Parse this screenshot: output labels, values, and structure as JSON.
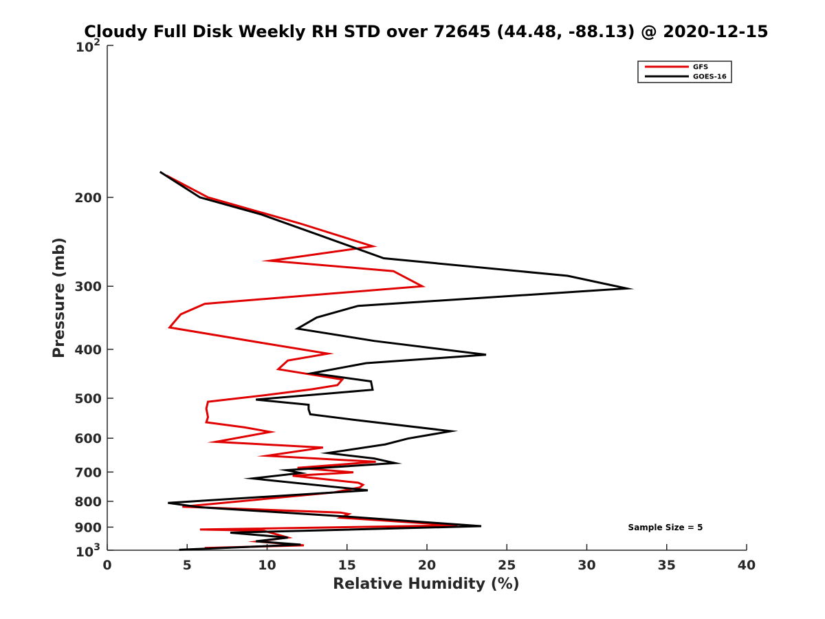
{
  "chart_data": {
    "type": "line",
    "title": "Cloudy Full Disk Weekly RH STD over 72645 (44.48, -88.13) @ 2020-12-15",
    "xlabel": "Relative Humidity (%)",
    "ylabel": "Pressure (mb)",
    "xlim": [
      0,
      40
    ],
    "ylim": [
      100,
      1000
    ],
    "yscale": "log",
    "y_reversed": true,
    "grid": false,
    "legend_position": "top-right",
    "x_ticks": [
      "0",
      "5",
      "10",
      "15",
      "20",
      "25",
      "30",
      "35",
      "40"
    ],
    "x_tick_values": [
      0,
      5,
      10,
      15,
      20,
      25,
      30,
      35,
      40
    ],
    "y_ticks": [
      {
        "value": 100,
        "base": "10",
        "exp": "2"
      },
      {
        "value": 200,
        "label": "200"
      },
      {
        "value": 300,
        "label": "300"
      },
      {
        "value": 400,
        "label": "400"
      },
      {
        "value": 500,
        "label": "500"
      },
      {
        "value": 600,
        "label": "600"
      },
      {
        "value": 700,
        "label": "700"
      },
      {
        "value": 800,
        "label": "800"
      },
      {
        "value": 900,
        "label": "900"
      },
      {
        "value": 1000,
        "base": "10",
        "exp": "3"
      }
    ],
    "series": [
      {
        "name": "GFS",
        "color": "#e00000",
        "points": [
          [
            3.7,
            181
          ],
          [
            6.3,
            200
          ],
          [
            12.0,
            225
          ],
          [
            16.6,
            250
          ],
          [
            10.2,
            267
          ],
          [
            17.9,
            280
          ],
          [
            19.7,
            300
          ],
          [
            6.1,
            325
          ],
          [
            4.6,
            341
          ],
          [
            3.9,
            362
          ],
          [
            9.8,
            389
          ],
          [
            13.8,
            408
          ],
          [
            11.3,
            421
          ],
          [
            10.7,
            438
          ],
          [
            14.7,
            459
          ],
          [
            14.4,
            471
          ],
          [
            12.8,
            480
          ],
          [
            9.9,
            493
          ],
          [
            6.3,
            508
          ],
          [
            6.2,
            524
          ],
          [
            6.3,
            545
          ],
          [
            6.2,
            558
          ],
          [
            8.6,
            571
          ],
          [
            10.2,
            583
          ],
          [
            6.8,
            610
          ],
          [
            13.5,
            626
          ],
          [
            10.0,
            650
          ],
          [
            16.8,
            668
          ],
          [
            11.9,
            687
          ],
          [
            15.4,
            701
          ],
          [
            11.6,
            712
          ],
          [
            15.7,
            735
          ],
          [
            16.0,
            742
          ],
          [
            15.8,
            751
          ],
          [
            14.2,
            768
          ],
          [
            4.7,
            820
          ],
          [
            14.6,
            842
          ],
          [
            15.1,
            848
          ],
          [
            14.6,
            862
          ],
          [
            21.9,
            893
          ],
          [
            5.8,
            910
          ],
          [
            9.8,
            915
          ],
          [
            11.3,
            944
          ],
          [
            9.4,
            961
          ],
          [
            10.6,
            968
          ],
          [
            12.3,
            978
          ],
          [
            6.1,
            990
          ]
        ]
      },
      {
        "name": "GOES-16",
        "color": "#000000",
        "points": [
          [
            3.3,
            178
          ],
          [
            5.8,
            200
          ],
          [
            9.6,
            216
          ],
          [
            13.0,
            236
          ],
          [
            17.3,
            264
          ],
          [
            28.8,
            286
          ],
          [
            32.5,
            303
          ],
          [
            15.7,
            328
          ],
          [
            13.1,
            346
          ],
          [
            11.9,
            364
          ],
          [
            16.7,
            385
          ],
          [
            23.7,
            410
          ],
          [
            16.2,
            426
          ],
          [
            12.8,
            446
          ],
          [
            16.5,
            463
          ],
          [
            16.6,
            481
          ],
          [
            9.3,
            503
          ],
          [
            12.6,
            515
          ],
          [
            12.6,
            526
          ],
          [
            12.7,
            538
          ],
          [
            15.3,
            551
          ],
          [
            21.5,
            581
          ],
          [
            18.8,
            601
          ],
          [
            17.4,
            617
          ],
          [
            13.8,
            642
          ],
          [
            16.7,
            658
          ],
          [
            18.0,
            672
          ],
          [
            11.2,
            694
          ],
          [
            12.1,
            703
          ],
          [
            9.1,
            721
          ],
          [
            16.3,
            761
          ],
          [
            3.8,
            806
          ],
          [
            5.8,
            822
          ],
          [
            15.3,
            859
          ],
          [
            23.4,
            896
          ],
          [
            7.7,
            923
          ],
          [
            11.3,
            944
          ],
          [
            9.3,
            960
          ],
          [
            12.1,
            975
          ],
          [
            4.5,
            998
          ]
        ]
      }
    ],
    "annotations": [
      {
        "text": "Sample Size = 5",
        "position": "bottom-right"
      }
    ]
  }
}
